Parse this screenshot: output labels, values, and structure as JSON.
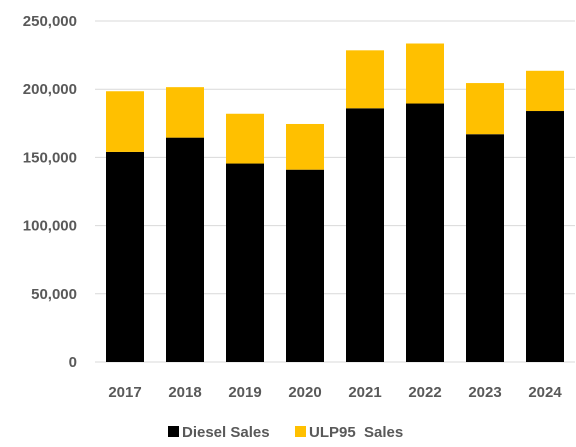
{
  "chart_data": {
    "type": "bar",
    "stacked": true,
    "categories": [
      "2017",
      "2018",
      "2019",
      "2020",
      "2021",
      "2022",
      "2023",
      "2024"
    ],
    "series": [
      {
        "name": "Diesel Sales",
        "color": "#000000",
        "values": [
          154000,
          164500,
          145500,
          141000,
          186000,
          189500,
          167000,
          184000
        ]
      },
      {
        "name": "ULP95  Sales",
        "color": "#FFC000",
        "values": [
          44500,
          37000,
          36500,
          33500,
          42500,
          44000,
          37500,
          29500
        ]
      }
    ],
    "ylim": [
      0,
      250000
    ],
    "yticks": [
      "0",
      "50,000",
      "100,000",
      "150,000",
      "200,000",
      "250,000"
    ],
    "ytick_values": [
      0,
      50000,
      100000,
      150000,
      200000,
      250000
    ],
    "grid": true,
    "gridline_color": "#D9D9D9",
    "legend_position": "bottom",
    "title": "",
    "xlabel": "",
    "ylabel": ""
  }
}
